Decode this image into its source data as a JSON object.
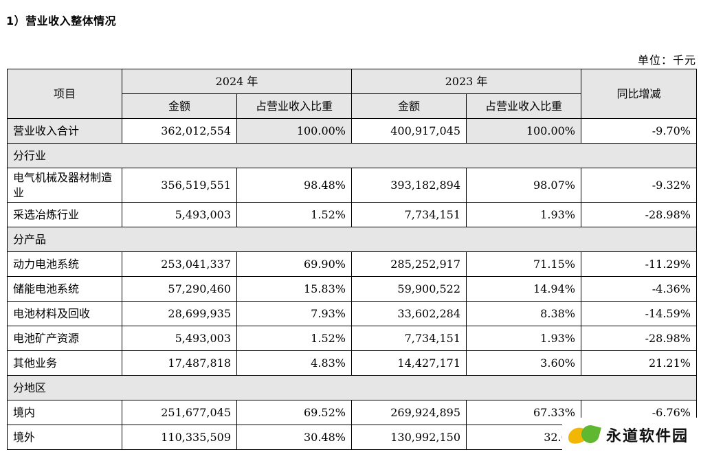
{
  "heading": "1）营业收入整体情况",
  "unit": "单位：千元",
  "header": {
    "item": "项目",
    "year_2024": "2024 年",
    "year_2023": "2023 年",
    "yoy": "同比增减",
    "amount_2024": "金额",
    "ratio_2024": "占营业收入比重",
    "amount_2023": "金额",
    "ratio_2023": "占营业收入比重"
  },
  "total": {
    "label": "营业收入合计",
    "amount_2024": "362,012,554",
    "ratio_2024": "100.00%",
    "amount_2023": "400,917,045",
    "ratio_2023": "100.00%",
    "yoy": "-9.70%"
  },
  "sections": [
    {
      "title": "分行业",
      "rows": [
        {
          "label": "电气机械及器材制造业",
          "amount_2024": "356,519,551",
          "ratio_2024": "98.48%",
          "amount_2023": "393,182,894",
          "ratio_2023": "98.07%",
          "yoy": "-9.32%"
        },
        {
          "label": "采选冶炼行业",
          "amount_2024": "5,493,003",
          "ratio_2024": "1.52%",
          "amount_2023": "7,734,151",
          "ratio_2023": "1.93%",
          "yoy": "-28.98%"
        }
      ]
    },
    {
      "title": "分产品",
      "rows": [
        {
          "label": "动力电池系统",
          "amount_2024": "253,041,337",
          "ratio_2024": "69.90%",
          "amount_2023": "285,252,917",
          "ratio_2023": "71.15%",
          "yoy": "-11.29%"
        },
        {
          "label": "储能电池系统",
          "amount_2024": "57,290,460",
          "ratio_2024": "15.83%",
          "amount_2023": "59,900,522",
          "ratio_2023": "14.94%",
          "yoy": "-4.36%"
        },
        {
          "label": "电池材料及回收",
          "amount_2024": "28,699,935",
          "ratio_2024": "7.93%",
          "amount_2023": "33,602,284",
          "ratio_2023": "8.38%",
          "yoy": "-14.59%"
        },
        {
          "label": "电池矿产资源",
          "amount_2024": "5,493,003",
          "ratio_2024": "1.52%",
          "amount_2023": "7,734,151",
          "ratio_2023": "1.93%",
          "yoy": "-28.98%"
        },
        {
          "label": "其他业务",
          "amount_2024": "17,487,818",
          "ratio_2024": "4.83%",
          "amount_2023": "14,427,171",
          "ratio_2023": "3.60%",
          "yoy": "21.21%"
        }
      ]
    },
    {
      "title": "分地区",
      "rows": [
        {
          "label": "境内",
          "amount_2024": "251,677,045",
          "ratio_2024": "69.52%",
          "amount_2023": "269,924,895",
          "ratio_2023": "67.33%",
          "yoy": "-6.76%"
        },
        {
          "label": "境外",
          "amount_2024": "110,335,509",
          "ratio_2024": "30.48%",
          "amount_2023": "130,992,150",
          "ratio_2023": "32.67",
          "yoy": ""
        }
      ]
    }
  ],
  "watermark": {
    "text": "永道软件园",
    "leaf_colors": [
      "#f2b705",
      "#5fb830"
    ]
  }
}
